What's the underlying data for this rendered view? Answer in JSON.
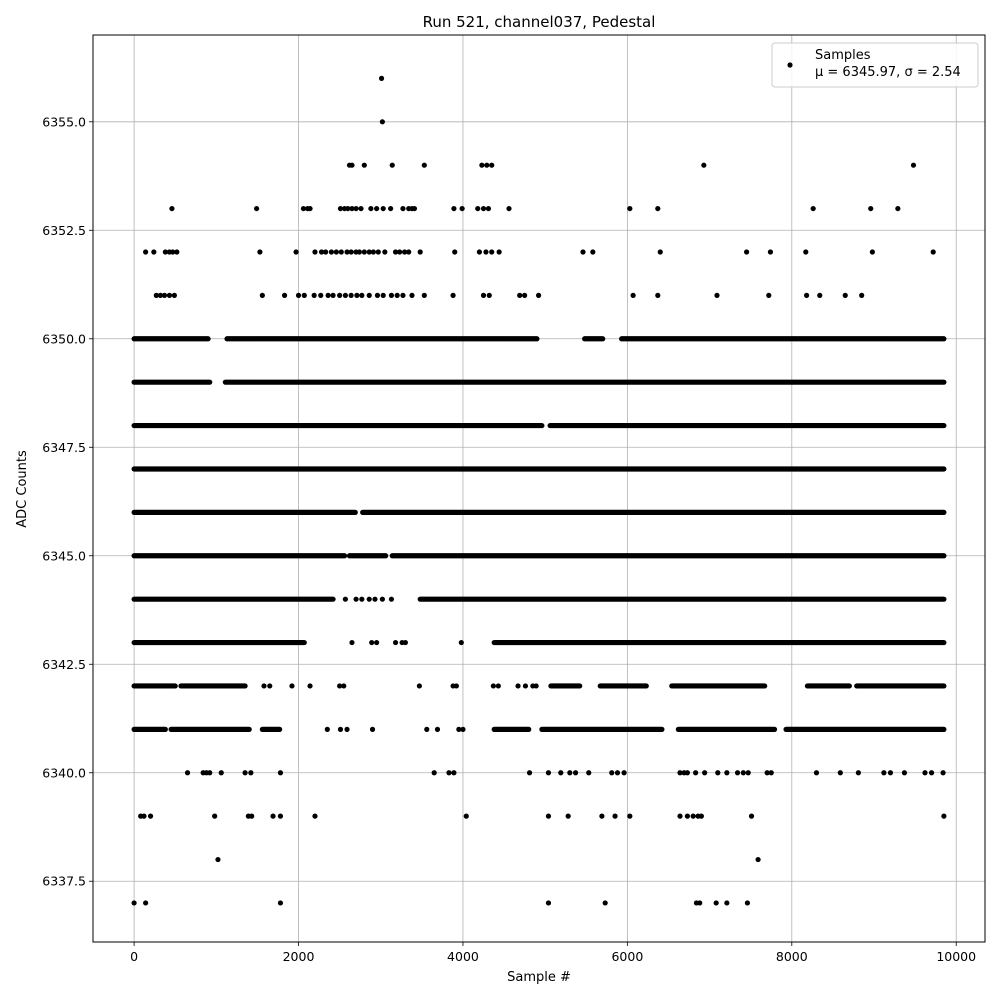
{
  "chart_data": {
    "type": "scatter",
    "title": "Run 521, channel037, Pedestal",
    "xlabel": "Sample #",
    "ylabel": "ADC Counts",
    "xlim": [
      -500,
      10350
    ],
    "ylim": [
      6336.1,
      6357.0
    ],
    "xticks": [
      0,
      2000,
      4000,
      6000,
      8000,
      10000
    ],
    "xtick_labels": [
      "0",
      "2000",
      "4000",
      "6000",
      "8000",
      "10000"
    ],
    "yticks": [
      6337.5,
      6340.0,
      6342.5,
      6345.0,
      6347.5,
      6350.0,
      6352.5,
      6355.0
    ],
    "ytick_labels": [
      "6337.5",
      "6340.0",
      "6342.5",
      "6345.0",
      "6347.5",
      "6350.0",
      "6352.5",
      "6355.0"
    ],
    "grid": true,
    "legend_position": "top-right",
    "legend": [
      "Samples",
      "μ = 6345.97, σ = 2.54"
    ],
    "colors": {
      "marker": "#000000",
      "grid": "#b0b0b0"
    },
    "series": [
      {
        "name": "Samples",
        "marker": "dot",
        "mean": 6345.97,
        "std": 2.54,
        "n_samples": 9850,
        "points": [
          [
            3010,
            6356
          ],
          [
            3020,
            6355
          ],
          [
            2620,
            6354
          ],
          [
            2650,
            6354
          ],
          [
            2800,
            6354
          ],
          [
            3140,
            6354
          ],
          [
            3530,
            6354
          ],
          [
            4230,
            6354
          ],
          [
            4290,
            6354
          ],
          [
            4350,
            6354
          ],
          [
            6930,
            6354
          ],
          [
            9480,
            6354
          ],
          [
            460,
            6353
          ],
          [
            1490,
            6353
          ],
          [
            2060,
            6353
          ],
          [
            2110,
            6353
          ],
          [
            2140,
            6353
          ],
          [
            2510,
            6353
          ],
          [
            2560,
            6353
          ],
          [
            2600,
            6353
          ],
          [
            2650,
            6353
          ],
          [
            2700,
            6353
          ],
          [
            2760,
            6353
          ],
          [
            2880,
            6353
          ],
          [
            2950,
            6353
          ],
          [
            3030,
            6353
          ],
          [
            3120,
            6353
          ],
          [
            3270,
            6353
          ],
          [
            3340,
            6353
          ],
          [
            3380,
            6353
          ],
          [
            3410,
            6353
          ],
          [
            3890,
            6353
          ],
          [
            3990,
            6353
          ],
          [
            4180,
            6353
          ],
          [
            4250,
            6353
          ],
          [
            4310,
            6353
          ],
          [
            4560,
            6353
          ],
          [
            6030,
            6353
          ],
          [
            6370,
            6353
          ],
          [
            8260,
            6353
          ],
          [
            8960,
            6353
          ],
          [
            9290,
            6353
          ],
          [
            140,
            6352
          ],
          [
            240,
            6352
          ],
          [
            380,
            6352
          ],
          [
            430,
            6352
          ],
          [
            470,
            6352
          ],
          [
            520,
            6352
          ],
          [
            1530,
            6352
          ],
          [
            1970,
            6352
          ],
          [
            2200,
            6352
          ],
          [
            2280,
            6352
          ],
          [
            2330,
            6352
          ],
          [
            2400,
            6352
          ],
          [
            2460,
            6352
          ],
          [
            2520,
            6352
          ],
          [
            2590,
            6352
          ],
          [
            2640,
            6352
          ],
          [
            2700,
            6352
          ],
          [
            2740,
            6352
          ],
          [
            2800,
            6352
          ],
          [
            2860,
            6352
          ],
          [
            2910,
            6352
          ],
          [
            2970,
            6352
          ],
          [
            3050,
            6352
          ],
          [
            3180,
            6352
          ],
          [
            3230,
            6352
          ],
          [
            3290,
            6352
          ],
          [
            3340,
            6352
          ],
          [
            3480,
            6352
          ],
          [
            3900,
            6352
          ],
          [
            4200,
            6352
          ],
          [
            4280,
            6352
          ],
          [
            4350,
            6352
          ],
          [
            4440,
            6352
          ],
          [
            5460,
            6352
          ],
          [
            5580,
            6352
          ],
          [
            6400,
            6352
          ],
          [
            7450,
            6352
          ],
          [
            7740,
            6352
          ],
          [
            8170,
            6352
          ],
          [
            8980,
            6352
          ],
          [
            9720,
            6352
          ],
          [
            270,
            6351
          ],
          [
            320,
            6351
          ],
          [
            370,
            6351
          ],
          [
            430,
            6351
          ],
          [
            490,
            6351
          ],
          [
            1560,
            6351
          ],
          [
            1830,
            6351
          ],
          [
            2000,
            6351
          ],
          [
            2070,
            6351
          ],
          [
            2190,
            6351
          ],
          [
            2270,
            6351
          ],
          [
            2360,
            6351
          ],
          [
            2420,
            6351
          ],
          [
            2500,
            6351
          ],
          [
            2570,
            6351
          ],
          [
            2640,
            6351
          ],
          [
            2710,
            6351
          ],
          [
            2770,
            6351
          ],
          [
            2860,
            6351
          ],
          [
            2960,
            6351
          ],
          [
            3030,
            6351
          ],
          [
            3130,
            6351
          ],
          [
            3200,
            6351
          ],
          [
            3270,
            6351
          ],
          [
            3380,
            6351
          ],
          [
            3530,
            6351
          ],
          [
            3880,
            6351
          ],
          [
            4250,
            6351
          ],
          [
            4320,
            6351
          ],
          [
            4690,
            6351
          ],
          [
            4750,
            6351
          ],
          [
            4920,
            6351
          ],
          [
            6070,
            6351
          ],
          [
            6370,
            6351
          ],
          [
            7090,
            6351
          ],
          [
            7720,
            6351
          ],
          [
            8180,
            6351
          ],
          [
            8340,
            6351
          ],
          [
            8650,
            6351
          ],
          [
            8850,
            6351
          ],
          [
            0,
            6337
          ],
          [
            140,
            6337
          ],
          [
            1780,
            6337
          ],
          [
            5040,
            6337
          ],
          [
            5730,
            6337
          ],
          [
            6840,
            6337
          ],
          [
            6880,
            6337
          ],
          [
            7080,
            6337
          ],
          [
            7210,
            6337
          ],
          [
            7460,
            6337
          ],
          [
            1020,
            6338
          ],
          [
            7590,
            6338
          ],
          [
            80,
            6339
          ],
          [
            120,
            6339
          ],
          [
            200,
            6339
          ],
          [
            980,
            6339
          ],
          [
            1390,
            6339
          ],
          [
            1430,
            6339
          ],
          [
            1690,
            6339
          ],
          [
            1780,
            6339
          ],
          [
            2200,
            6339
          ],
          [
            4040,
            6339
          ],
          [
            5040,
            6339
          ],
          [
            5280,
            6339
          ],
          [
            5690,
            6339
          ],
          [
            5850,
            6339
          ],
          [
            6030,
            6339
          ],
          [
            6640,
            6339
          ],
          [
            6730,
            6339
          ],
          [
            6800,
            6339
          ],
          [
            6860,
            6339
          ],
          [
            6900,
            6339
          ],
          [
            7510,
            6339
          ],
          [
            9850,
            6339
          ],
          [
            650,
            6340
          ],
          [
            840,
            6340
          ],
          [
            880,
            6340
          ],
          [
            920,
            6340
          ],
          [
            1060,
            6340
          ],
          [
            1350,
            6340
          ],
          [
            1420,
            6340
          ],
          [
            1780,
            6340
          ],
          [
            3650,
            6340
          ],
          [
            3830,
            6340
          ],
          [
            3890,
            6340
          ],
          [
            4810,
            6340
          ],
          [
            5040,
            6340
          ],
          [
            5190,
            6340
          ],
          [
            5300,
            6340
          ],
          [
            5370,
            6340
          ],
          [
            5530,
            6340
          ],
          [
            5810,
            6340
          ],
          [
            5880,
            6340
          ],
          [
            5960,
            6340
          ],
          [
            6640,
            6340
          ],
          [
            6690,
            6340
          ],
          [
            6730,
            6340
          ],
          [
            6830,
            6340
          ],
          [
            6940,
            6340
          ],
          [
            7100,
            6340
          ],
          [
            7210,
            6340
          ],
          [
            7340,
            6340
          ],
          [
            7410,
            6340
          ],
          [
            7470,
            6340
          ],
          [
            7700,
            6340
          ],
          [
            7750,
            6340
          ],
          [
            8300,
            6340
          ],
          [
            8590,
            6340
          ],
          [
            8810,
            6340
          ],
          [
            9120,
            6340
          ],
          [
            9200,
            6340
          ],
          [
            9370,
            6340
          ],
          [
            9620,
            6340
          ],
          [
            9700,
            6340
          ],
          [
            9840,
            6340
          ],
          [
            1580,
            6342
          ],
          [
            1650,
            6342
          ],
          [
            1920,
            6342
          ],
          [
            2140,
            6342
          ],
          [
            2500,
            6342
          ],
          [
            2550,
            6342
          ],
          [
            3470,
            6342
          ],
          [
            3880,
            6342
          ],
          [
            3920,
            6342
          ],
          [
            4370,
            6342
          ],
          [
            4430,
            6342
          ],
          [
            4670,
            6342
          ],
          [
            4760,
            6342
          ],
          [
            4850,
            6342
          ],
          [
            4890,
            6342
          ],
          [
            2350,
            6341
          ],
          [
            2510,
            6341
          ],
          [
            2590,
            6341
          ],
          [
            2900,
            6341
          ],
          [
            3560,
            6341
          ],
          [
            3690,
            6341
          ],
          [
            3950,
            6341
          ],
          [
            4000,
            6341
          ],
          [
            2650,
            6343
          ],
          [
            2890,
            6343
          ],
          [
            2950,
            6343
          ],
          [
            3180,
            6343
          ],
          [
            3260,
            6343
          ],
          [
            3300,
            6343
          ],
          [
            3980,
            6343
          ],
          [
            2570,
            6344
          ],
          [
            2700,
            6344
          ],
          [
            2770,
            6344
          ],
          [
            2860,
            6344
          ],
          [
            2930,
            6344
          ],
          [
            3020,
            6344
          ],
          [
            3130,
            6344
          ]
        ],
        "dense_runs": [
          {
            "y": 6345,
            "x_ranges": [
              [
                0,
                2560
              ],
              [
                2620,
                3060
              ],
              [
                3140,
                9850
              ]
            ]
          },
          {
            "y": 6346,
            "x_ranges": [
              [
                0,
                2690
              ],
              [
                2780,
                9850
              ]
            ]
          },
          {
            "y": 6347,
            "x_ranges": [
              [
                0,
                9850
              ]
            ]
          },
          {
            "y": 6348,
            "x_ranges": [
              [
                0,
                4960
              ],
              [
                5060,
                9850
              ]
            ]
          },
          {
            "y": 6349,
            "x_ranges": [
              [
                0,
                920
              ],
              [
                1110,
                9850
              ]
            ]
          },
          {
            "y": 6344,
            "x_ranges": [
              [
                0,
                2420
              ],
              [
                3480,
                9850
              ]
            ]
          },
          {
            "y": 6343,
            "x_ranges": [
              [
                0,
                2070
              ],
              [
                4380,
                9850
              ]
            ]
          },
          {
            "y": 6350,
            "x_ranges": [
              [
                0,
                900
              ],
              [
                1130,
                4900
              ],
              [
                5480,
                5700
              ],
              [
                5930,
                9850
              ]
            ]
          },
          {
            "y": 6341,
            "x_ranges": [
              [
                0,
                380
              ],
              [
                450,
                1400
              ],
              [
                1560,
                1770
              ],
              [
                4380,
                4800
              ],
              [
                4960,
                6420
              ],
              [
                6620,
                7790
              ],
              [
                7930,
                9850
              ]
            ]
          },
          {
            "y": 6342,
            "x_ranges": [
              [
                0,
                500
              ],
              [
                570,
                1350
              ],
              [
                5070,
                5420
              ],
              [
                5670,
                6230
              ],
              [
                6540,
                7670
              ],
              [
                8190,
                8700
              ],
              [
                8790,
                9850
              ]
            ]
          }
        ]
      }
    ]
  }
}
